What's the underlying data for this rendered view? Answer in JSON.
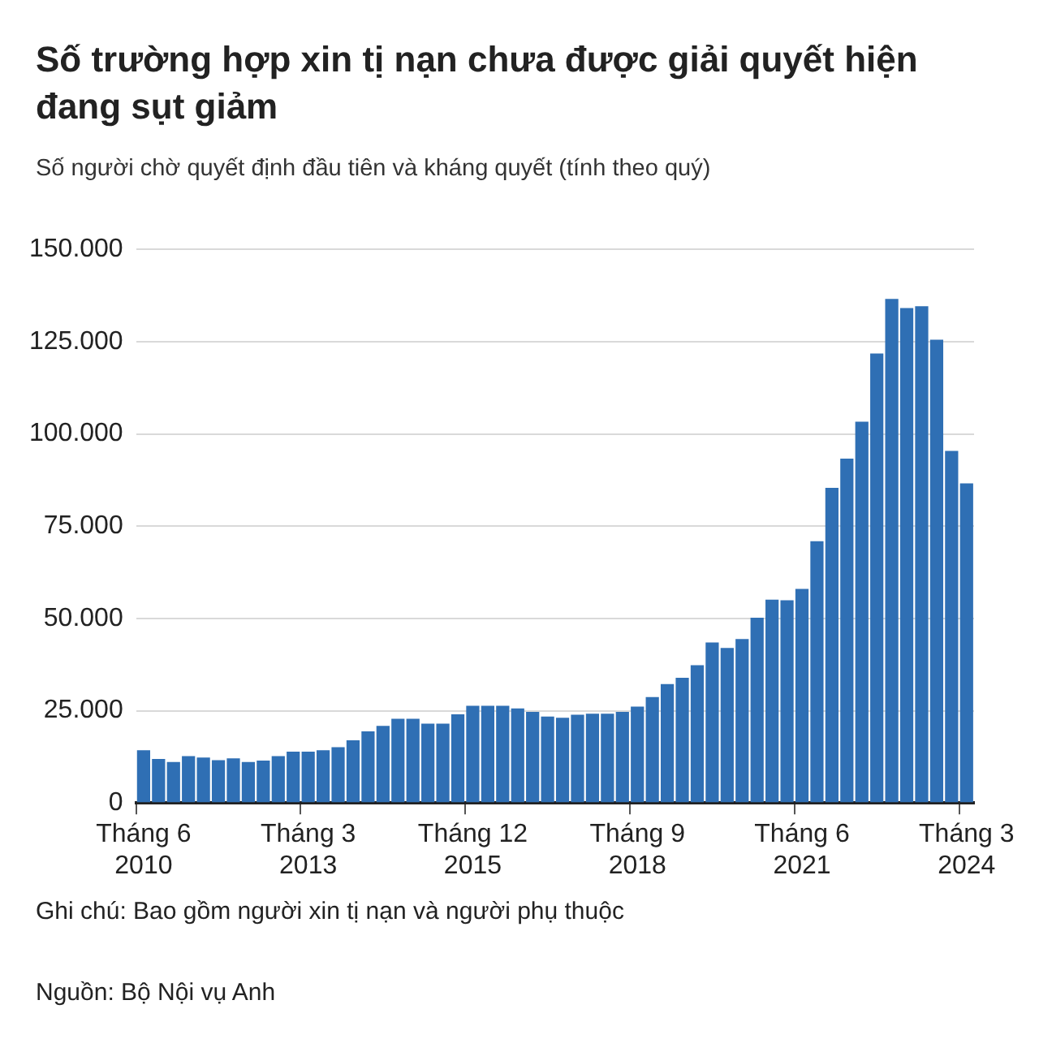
{
  "chart_data": {
    "type": "bar",
    "title": "Số trường hợp xin tị nạn chưa được giải quyết hiện đang sụt giảm",
    "subtitle": "Số người chờ quyết định đầu tiên và kháng quyết (tính theo quý)",
    "categories": [
      "Tháng 6 2010",
      null,
      null,
      null,
      null,
      null,
      null,
      null,
      null,
      null,
      null,
      "Tháng 3 2013",
      null,
      null,
      null,
      null,
      null,
      null,
      null,
      null,
      null,
      null,
      "Tháng 12 2015",
      null,
      null,
      null,
      null,
      null,
      null,
      null,
      null,
      null,
      null,
      "Tháng 9 2018",
      null,
      null,
      null,
      null,
      null,
      null,
      null,
      null,
      null,
      null,
      "Tháng 6 2021",
      null,
      null,
      null,
      null,
      null,
      null,
      null,
      null,
      null,
      null,
      "Tháng 3 2024"
    ],
    "values": [
      14300,
      11900,
      11100,
      12700,
      12300,
      11600,
      12100,
      11100,
      11500,
      12700,
      13900,
      13900,
      14300,
      15100,
      17000,
      19400,
      20900,
      22800,
      22800,
      21500,
      21500,
      24000,
      26300,
      26300,
      26300,
      25600,
      24700,
      23400,
      23100,
      23900,
      24200,
      24200,
      24700,
      26100,
      28700,
      32200,
      33900,
      37300,
      43500,
      42000,
      44400,
      50200,
      55100,
      54900,
      58000,
      70900,
      85400,
      93300,
      103300,
      121800,
      136600,
      134100,
      134600,
      125500,
      95400,
      86600
    ],
    "color": "#2f6fb4",
    "ylim": [
      0,
      150000
    ],
    "yticks": [
      {
        "value": 0,
        "label": "0"
      },
      {
        "value": 25000,
        "label": "25.000"
      },
      {
        "value": 50000,
        "label": "50.000"
      },
      {
        "value": 75000,
        "label": "75.000"
      },
      {
        "value": 100000,
        "label": "100.000"
      },
      {
        "value": 125000,
        "label": "125.000"
      },
      {
        "value": 150000,
        "label": "150.000"
      }
    ],
    "grid": "y",
    "annotations": [
      "Ghi chú: Bao gồm người xin tị nạn và người phụ thuộc",
      "Nguồn: Bộ Nội vụ Anh"
    ]
  }
}
